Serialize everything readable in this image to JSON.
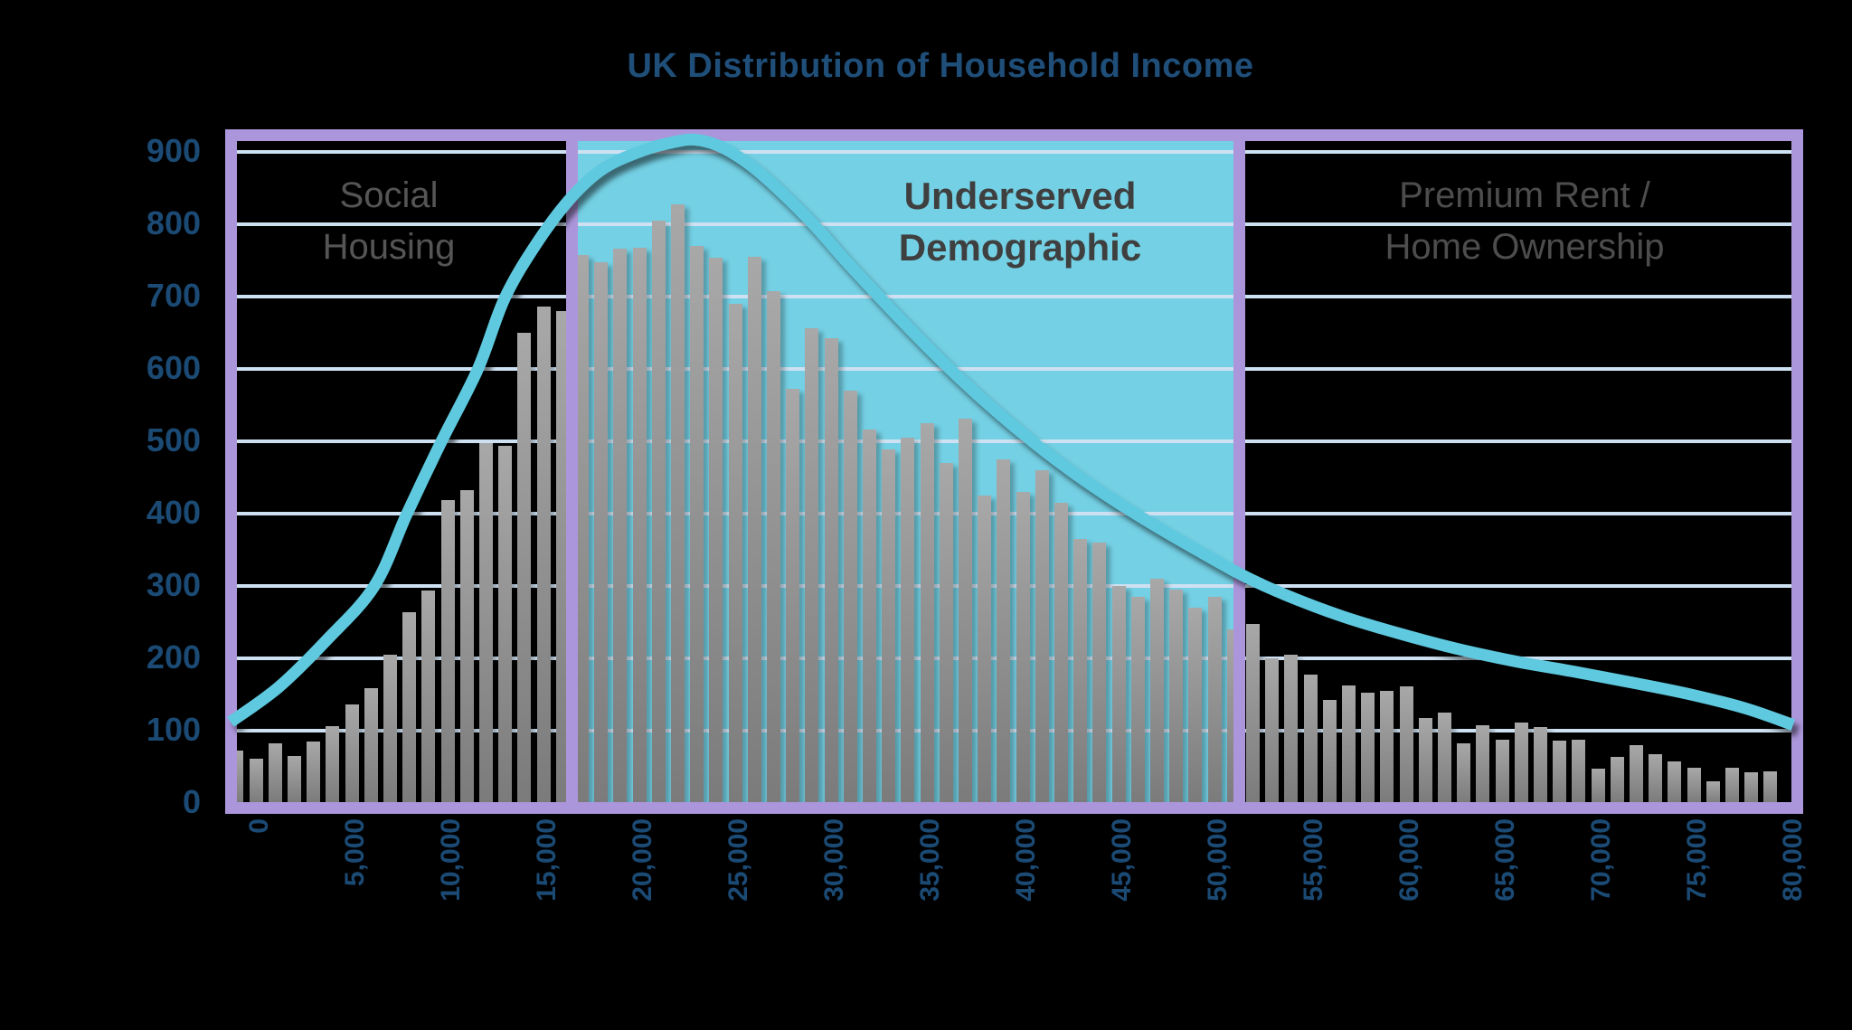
{
  "chart_data": {
    "type": "bar",
    "title": "UK Distribution of Household Income",
    "xlabel": "",
    "ylabel": "",
    "ylim": [
      0,
      900
    ],
    "xlim": [
      0,
      81700
    ],
    "grid": true,
    "yticks": [
      0,
      100,
      200,
      300,
      400,
      500,
      600,
      700,
      800,
      900
    ],
    "xticks": [
      [
        0,
        "0"
      ],
      [
        5000,
        "5,000"
      ],
      [
        10000,
        "10,000"
      ],
      [
        15000,
        "15,000"
      ],
      [
        20000,
        "20,000"
      ],
      [
        25000,
        "25,000"
      ],
      [
        30000,
        "30,000"
      ],
      [
        35000,
        "35,000"
      ],
      [
        40000,
        "40,000"
      ],
      [
        45000,
        "45,000"
      ],
      [
        50000,
        "50,000"
      ],
      [
        55000,
        "55,000"
      ],
      [
        60000,
        "60,000"
      ],
      [
        65000,
        "65,000"
      ],
      [
        70000,
        "70,000"
      ],
      [
        75000,
        "75,000"
      ],
      [
        80000,
        "80,000"
      ]
    ],
    "histogram": {
      "bin_width": 1000,
      "first_bin_center": 330,
      "values": [
        72,
        61,
        83,
        65,
        85,
        106,
        136,
        159,
        205,
        264,
        294,
        419,
        432,
        498,
        494,
        650,
        686,
        680,
        757,
        748,
        766,
        768,
        805,
        828,
        770,
        754,
        690,
        755,
        707,
        572,
        656,
        643,
        570,
        516,
        489,
        505,
        525,
        470,
        531,
        425,
        475,
        430,
        460,
        415,
        365,
        360,
        300,
        285,
        310,
        295,
        270,
        285,
        240,
        247,
        200,
        205,
        178,
        142,
        163,
        152,
        155,
        161,
        117,
        125,
        82,
        107,
        87,
        111,
        105,
        86,
        87,
        48,
        64,
        80,
        68,
        57,
        49,
        30,
        49,
        42,
        44
      ]
    },
    "curve_series": {
      "name": "smoothed distribution curve",
      "points": [
        [
          0,
          112
        ],
        [
          2500,
          160
        ],
        [
          5000,
          225
        ],
        [
          7500,
          300
        ],
        [
          9200,
          400
        ],
        [
          11000,
          500
        ],
        [
          12900,
          600
        ],
        [
          14300,
          698
        ],
        [
          16000,
          775
        ],
        [
          17800,
          838
        ],
        [
          19500,
          878
        ],
        [
          21500,
          902
        ],
        [
          23000,
          913
        ],
        [
          24200,
          917
        ],
        [
          25500,
          908
        ],
        [
          27000,
          884
        ],
        [
          28500,
          850
        ],
        [
          30400,
          800
        ],
        [
          32000,
          752
        ],
        [
          34000,
          695
        ],
        [
          36000,
          640
        ],
        [
          38000,
          588
        ],
        [
          40000,
          540
        ],
        [
          42000,
          496
        ],
        [
          44000,
          456
        ],
        [
          46000,
          420
        ],
        [
          48000,
          387
        ],
        [
          50000,
          356
        ],
        [
          52700,
          316
        ],
        [
          55000,
          288
        ],
        [
          58000,
          258
        ],
        [
          61000,
          234
        ],
        [
          64000,
          213
        ],
        [
          67000,
          196
        ],
        [
          70000,
          182
        ],
        [
          73000,
          167
        ],
        [
          76000,
          151
        ],
        [
          79000,
          131
        ],
        [
          81500,
          108
        ]
      ]
    },
    "regions": [
      {
        "label": "Social Housing",
        "label_lines": [
          "Social",
          "Housing"
        ],
        "from": 0,
        "to": 17800,
        "emphasis": false,
        "highlighted": false,
        "label_color": "#555555"
      },
      {
        "label": "Underserved Demographic",
        "label_lines": [
          "Underserved",
          "Demographic"
        ],
        "from": 17800,
        "to": 52600,
        "emphasis": true,
        "highlighted": true,
        "label_color": "#3f3f3f"
      },
      {
        "label": "Premium Rent / Home Ownership",
        "label_lines": [
          "Premium Rent /",
          "Home Ownership"
        ],
        "from": 52600,
        "to": 81700,
        "emphasis": false,
        "highlighted": false,
        "label_color": "#4d4d4d"
      }
    ],
    "legend": null,
    "colors": {
      "background": "#000000",
      "title_text": "#1f4e79",
      "axis_tick_text": "#1b4a74",
      "gridline": "#cee1f2",
      "bar_top": "#a8a8a8",
      "bar_bottom": "#7b7b7b",
      "region_border": "#ac96db",
      "highlight_fill": "#74d0e4",
      "curve": "#5fc9df"
    }
  }
}
